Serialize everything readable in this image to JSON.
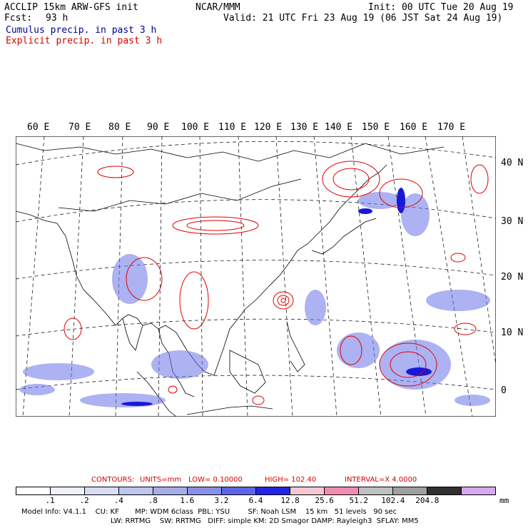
{
  "header": {
    "model_line": "ACCLIP 15km ARW-GFS init",
    "center": "NCAR/MMM",
    "init": "Init: 00 UTC Tue 20 Aug 19",
    "fcst_label": "Fcst:",
    "fcst_value": "93 h",
    "valid": "Valid: 21 UTC Fri 23 Aug 19 (06 JST Sat 24 Aug 19)",
    "cumulus": "Cumulus precip. in past 3 h",
    "explicit": "Explicit precip. in past 3 h"
  },
  "map": {
    "lon_labels": [
      "60 E",
      "70 E",
      "80 E",
      "90 E",
      "100 E",
      "110 E",
      "120 E",
      "130 E",
      "140 E",
      "150 E",
      "160 E",
      "170 E"
    ],
    "lat_labels": [
      "40 N",
      "30 N",
      "20 N",
      "10 N",
      "0"
    ]
  },
  "contours": {
    "label": "CONTOURS:",
    "units": "UNITS=mm",
    "low": "LOW= 0.10000",
    "high": "HIGH= 102.40",
    "interval": "INTERVAL=X 4.0000"
  },
  "colorbar": {
    "colors": [
      "#ffffff",
      "#eef0fa",
      "#d8dcf4",
      "#bfc5ee",
      "#a6aeea",
      "#8890e6",
      "#5f66e6",
      "#2424e6",
      "#f4c8d2",
      "#f08cb4",
      "#c0c0c0",
      "#a0a0a0",
      "#303030",
      "#d8a8f0"
    ],
    "labels": [
      ".1",
      ".2",
      ".4",
      ".8",
      "1.6",
      "3.2",
      "6.4",
      "12.8",
      "25.6",
      "51.2",
      "102.4",
      "204.8"
    ],
    "units": "mm"
  },
  "footer": {
    "line1": "Model Info: V4.1.1    CU: KF       MP: WDM 6class  PBL: YSU        SF: Noah LSM    15 km   51 levels   90 sec",
    "line2": "LW: RRTMG    SW: RRTMG   DIFF: simple KM: 2D Smagor DAMP: Rayleigh3  SFLAY: MM5"
  }
}
